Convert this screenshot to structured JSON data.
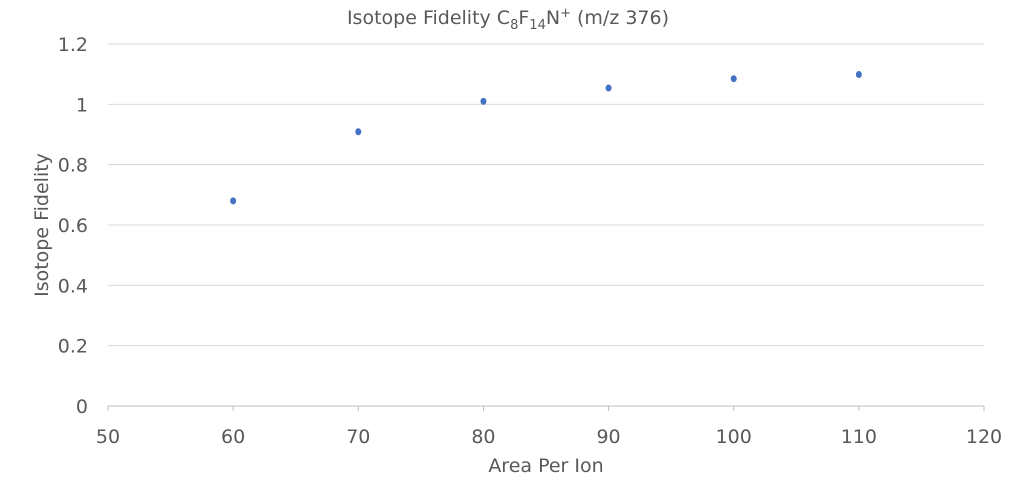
{
  "chart_data": {
    "type": "scatter",
    "title": {
      "main": "Isotope Fidelity C",
      "sub1": "8",
      "mid1": "F",
      "sub2": "14",
      "mid2": "N",
      "sup": "+",
      "tail": " (m/z 376)"
    },
    "xlabel": "Area Per Ion",
    "ylabel": "Isotope Fidelity",
    "xlim": [
      50,
      120
    ],
    "ylim": [
      0,
      1.2
    ],
    "xticks": [
      "50",
      "60",
      "70",
      "80",
      "90",
      "100",
      "110",
      "120"
    ],
    "yticks": [
      "0",
      "0.2",
      "0.4",
      "0.6",
      "0.8",
      "1",
      "1.2"
    ],
    "grid": "horizontal",
    "legend": "none",
    "color": "#4472C4",
    "points": [
      {
        "x": 60,
        "y": 0.68
      },
      {
        "x": 70,
        "y": 0.909
      },
      {
        "x": 80,
        "y": 1.01
      },
      {
        "x": 90,
        "y": 1.054
      },
      {
        "x": 100,
        "y": 1.085
      },
      {
        "x": 110,
        "y": 1.099
      }
    ]
  }
}
